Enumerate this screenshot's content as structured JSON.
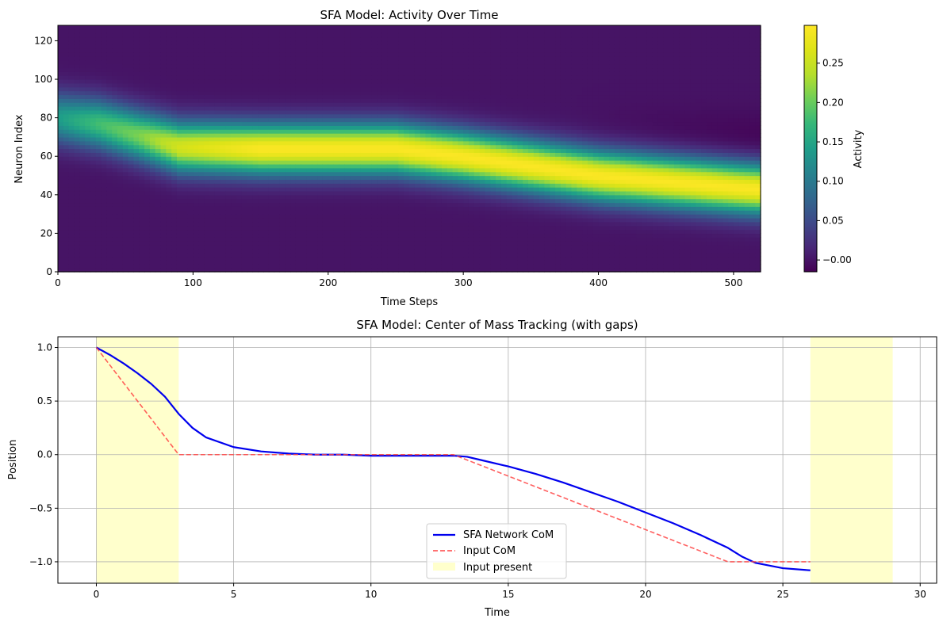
{
  "chart_data": [
    {
      "type": "heatmap",
      "title": "SFA Model: Activity Over Time",
      "xlabel": "Time Steps",
      "ylabel": "Neuron Index",
      "xlim": [
        0,
        520
      ],
      "ylim": [
        0,
        128
      ],
      "xticks": [
        0,
        100,
        200,
        300,
        400,
        500
      ],
      "yticks": [
        0,
        20,
        40,
        60,
        80,
        100,
        120
      ],
      "colormap": "viridis",
      "colorbar": {
        "label": "Activity",
        "range": [
          -0.015,
          0.298
        ],
        "ticks": [
          -0.0,
          0.05,
          0.1,
          0.15,
          0.2,
          0.25
        ],
        "tick_labels": [
          "−0.00",
          "0.05",
          "0.10",
          "0.15",
          "0.20",
          "0.25"
        ]
      },
      "bump_center": {
        "t": [
          0,
          30,
          60,
          90,
          150,
          250,
          300,
          400,
          500,
          520
        ],
        "neuron": [
          80,
          77,
          71,
          65,
          64,
          64,
          60,
          50,
          44,
          43
        ]
      },
      "peak_activity": {
        "t": [
          0,
          30,
          60,
          90,
          150,
          300,
          500,
          520
        ],
        "value": [
          0.14,
          0.18,
          0.21,
          0.26,
          0.295,
          0.295,
          0.295,
          0.295
        ]
      },
      "bump_width": 9,
      "grid": false
    },
    {
      "type": "line",
      "title": "SFA Model: Center of Mass Tracking (with gaps)",
      "xlabel": "Time",
      "ylabel": "Position",
      "xlim": [
        -1.4,
        30.6
      ],
      "ylim": [
        -1.2,
        1.1
      ],
      "xticks": [
        0,
        5,
        10,
        15,
        20,
        25,
        30
      ],
      "yticks": [
        -1.0,
        -0.5,
        0.0,
        0.5,
        1.0
      ],
      "ytick_labels": [
        "−1.0",
        "−0.5",
        "0.0",
        "0.5",
        "1.0"
      ],
      "grid": true,
      "legend_position": "bottom-center",
      "shaded_regions": {
        "name": "Input present",
        "color": "#ffffcc",
        "spans": [
          [
            0,
            3
          ],
          [
            26,
            29
          ]
        ]
      },
      "series": [
        {
          "name": "SFA Network CoM",
          "color": "#0000ee",
          "style": "solid",
          "x": [
            0,
            0.5,
            1.0,
            1.5,
            2.0,
            2.5,
            3.0,
            3.5,
            4.0,
            5.0,
            6.0,
            7.0,
            8.0,
            9.0,
            10.0,
            11.0,
            12.0,
            13.0,
            13.5,
            14.0,
            15.0,
            16.0,
            17.0,
            18.0,
            19.0,
            20.0,
            21.0,
            22.0,
            23.0,
            23.5,
            24.0,
            25.0,
            26.0
          ],
          "y": [
            1.0,
            0.93,
            0.85,
            0.76,
            0.66,
            0.54,
            0.38,
            0.25,
            0.16,
            0.07,
            0.03,
            0.01,
            0.0,
            0.0,
            -0.01,
            -0.01,
            -0.01,
            -0.01,
            -0.02,
            -0.05,
            -0.11,
            -0.18,
            -0.26,
            -0.35,
            -0.44,
            -0.54,
            -0.64,
            -0.75,
            -0.87,
            -0.95,
            -1.01,
            -1.06,
            -1.08
          ]
        },
        {
          "name": "Input CoM",
          "color": "#ff4444",
          "style": "dashed",
          "x": [
            0,
            3,
            13,
            23,
            26
          ],
          "y": [
            1.0,
            0.0,
            0.0,
            -1.0,
            -1.0
          ]
        }
      ]
    }
  ]
}
